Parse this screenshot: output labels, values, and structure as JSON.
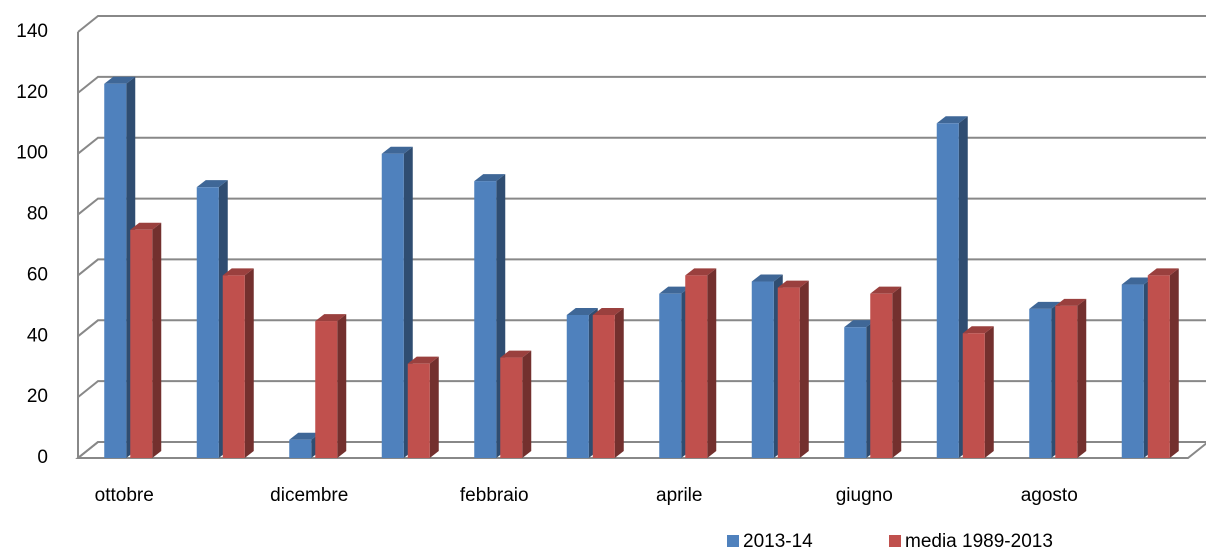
{
  "chart_data": {
    "type": "bar3d",
    "categories": [
      "ottobre",
      null,
      "dicembre",
      null,
      "febbraio",
      null,
      "aprile",
      null,
      "giugno",
      null,
      "agosto",
      null
    ],
    "series": [
      {
        "name": "2013-14",
        "color": "#4f81bd",
        "values": [
          123,
          89,
          6,
          100,
          91,
          47,
          54,
          58,
          43,
          110,
          49,
          57
        ]
      },
      {
        "name": "media 1989-2013",
        "color": "#c0504d",
        "values": [
          75,
          60,
          45,
          31,
          33,
          47,
          60,
          56,
          54,
          41,
          50,
          60
        ]
      }
    ],
    "ylim": [
      0,
      140
    ],
    "yticks": [
      0,
      20,
      40,
      60,
      80,
      100,
      120,
      140
    ],
    "grid": true,
    "legend": "bottom-right"
  }
}
